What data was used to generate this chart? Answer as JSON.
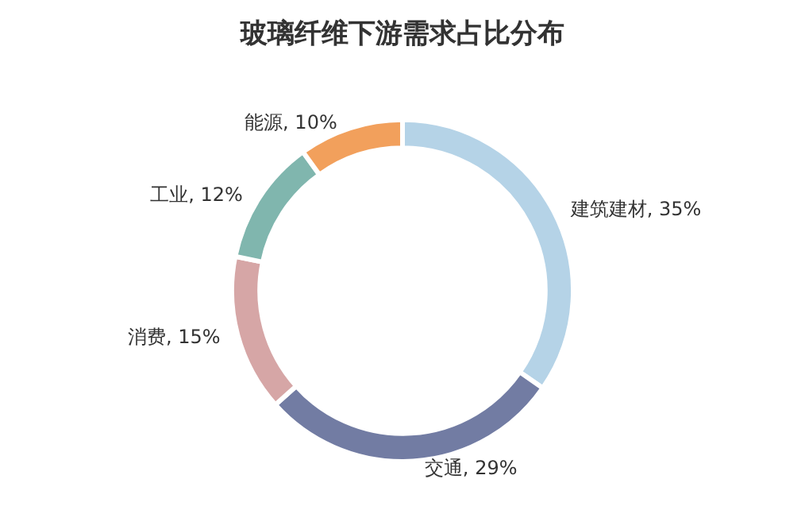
{
  "chart_data": {
    "type": "donut",
    "title": "玻璃纤维下游需求占比分布",
    "categories": [
      "建筑建材",
      "交通",
      "消费",
      "工业",
      "能源"
    ],
    "values": [
      35,
      29,
      15,
      12,
      10
    ],
    "value_labels": [
      "35%",
      "29%",
      "15%",
      "12%",
      "10%"
    ],
    "colors": [
      "#b5d3e7",
      "#727ca3",
      "#d6a6a6",
      "#80b6ae",
      "#f2a05c"
    ],
    "legend": false
  }
}
